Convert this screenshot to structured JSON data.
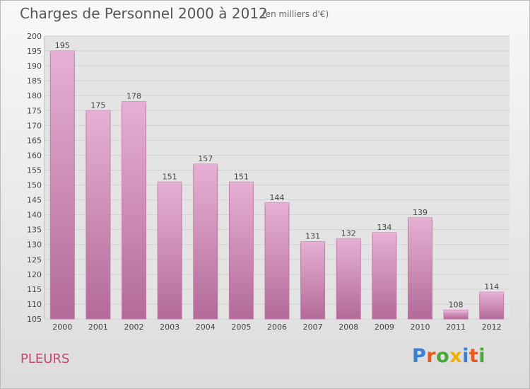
{
  "header": {
    "title": "Charges de Personnel 2000 à 2012",
    "subtitle": "(en milliers d'€)"
  },
  "commune": "PLEURS",
  "logo": {
    "text": "Proxiti",
    "letters": [
      {
        "ch": "P",
        "color": "#3a7fd0"
      },
      {
        "ch": "r",
        "color": "#e85a1e"
      },
      {
        "ch": "o",
        "color": "#49a639"
      },
      {
        "ch": "x",
        "color": "#f2b100"
      },
      {
        "ch": "i",
        "color": "#3a7fd0"
      },
      {
        "ch": "t",
        "color": "#e85a1e"
      },
      {
        "ch": "i",
        "color": "#49a639"
      }
    ]
  },
  "colors": {
    "bar_fill_top": "#e6b0d4",
    "bar_fill_bottom": "#b36a99",
    "bar_edge": "#c07aa6",
    "grid": "#d2d2d2",
    "plot_bg": "#e4e4e4"
  },
  "chart_data": {
    "type": "bar",
    "title": "Charges de Personnel 2000 à 2012",
    "subtitle": "(en milliers d'€)",
    "categories": [
      "2000",
      "2001",
      "2002",
      "2003",
      "2004",
      "2005",
      "2006",
      "2007",
      "2008",
      "2009",
      "2010",
      "2011",
      "2012"
    ],
    "values": [
      195,
      175,
      178,
      151,
      157,
      151,
      144,
      131,
      132,
      134,
      139,
      108,
      114
    ],
    "ylim": [
      105,
      200
    ],
    "yticks": [
      105,
      110,
      115,
      120,
      125,
      130,
      135,
      140,
      145,
      150,
      155,
      160,
      165,
      170,
      175,
      180,
      185,
      190,
      195,
      200
    ],
    "grid": true,
    "data_labels": true,
    "legend": "none"
  }
}
